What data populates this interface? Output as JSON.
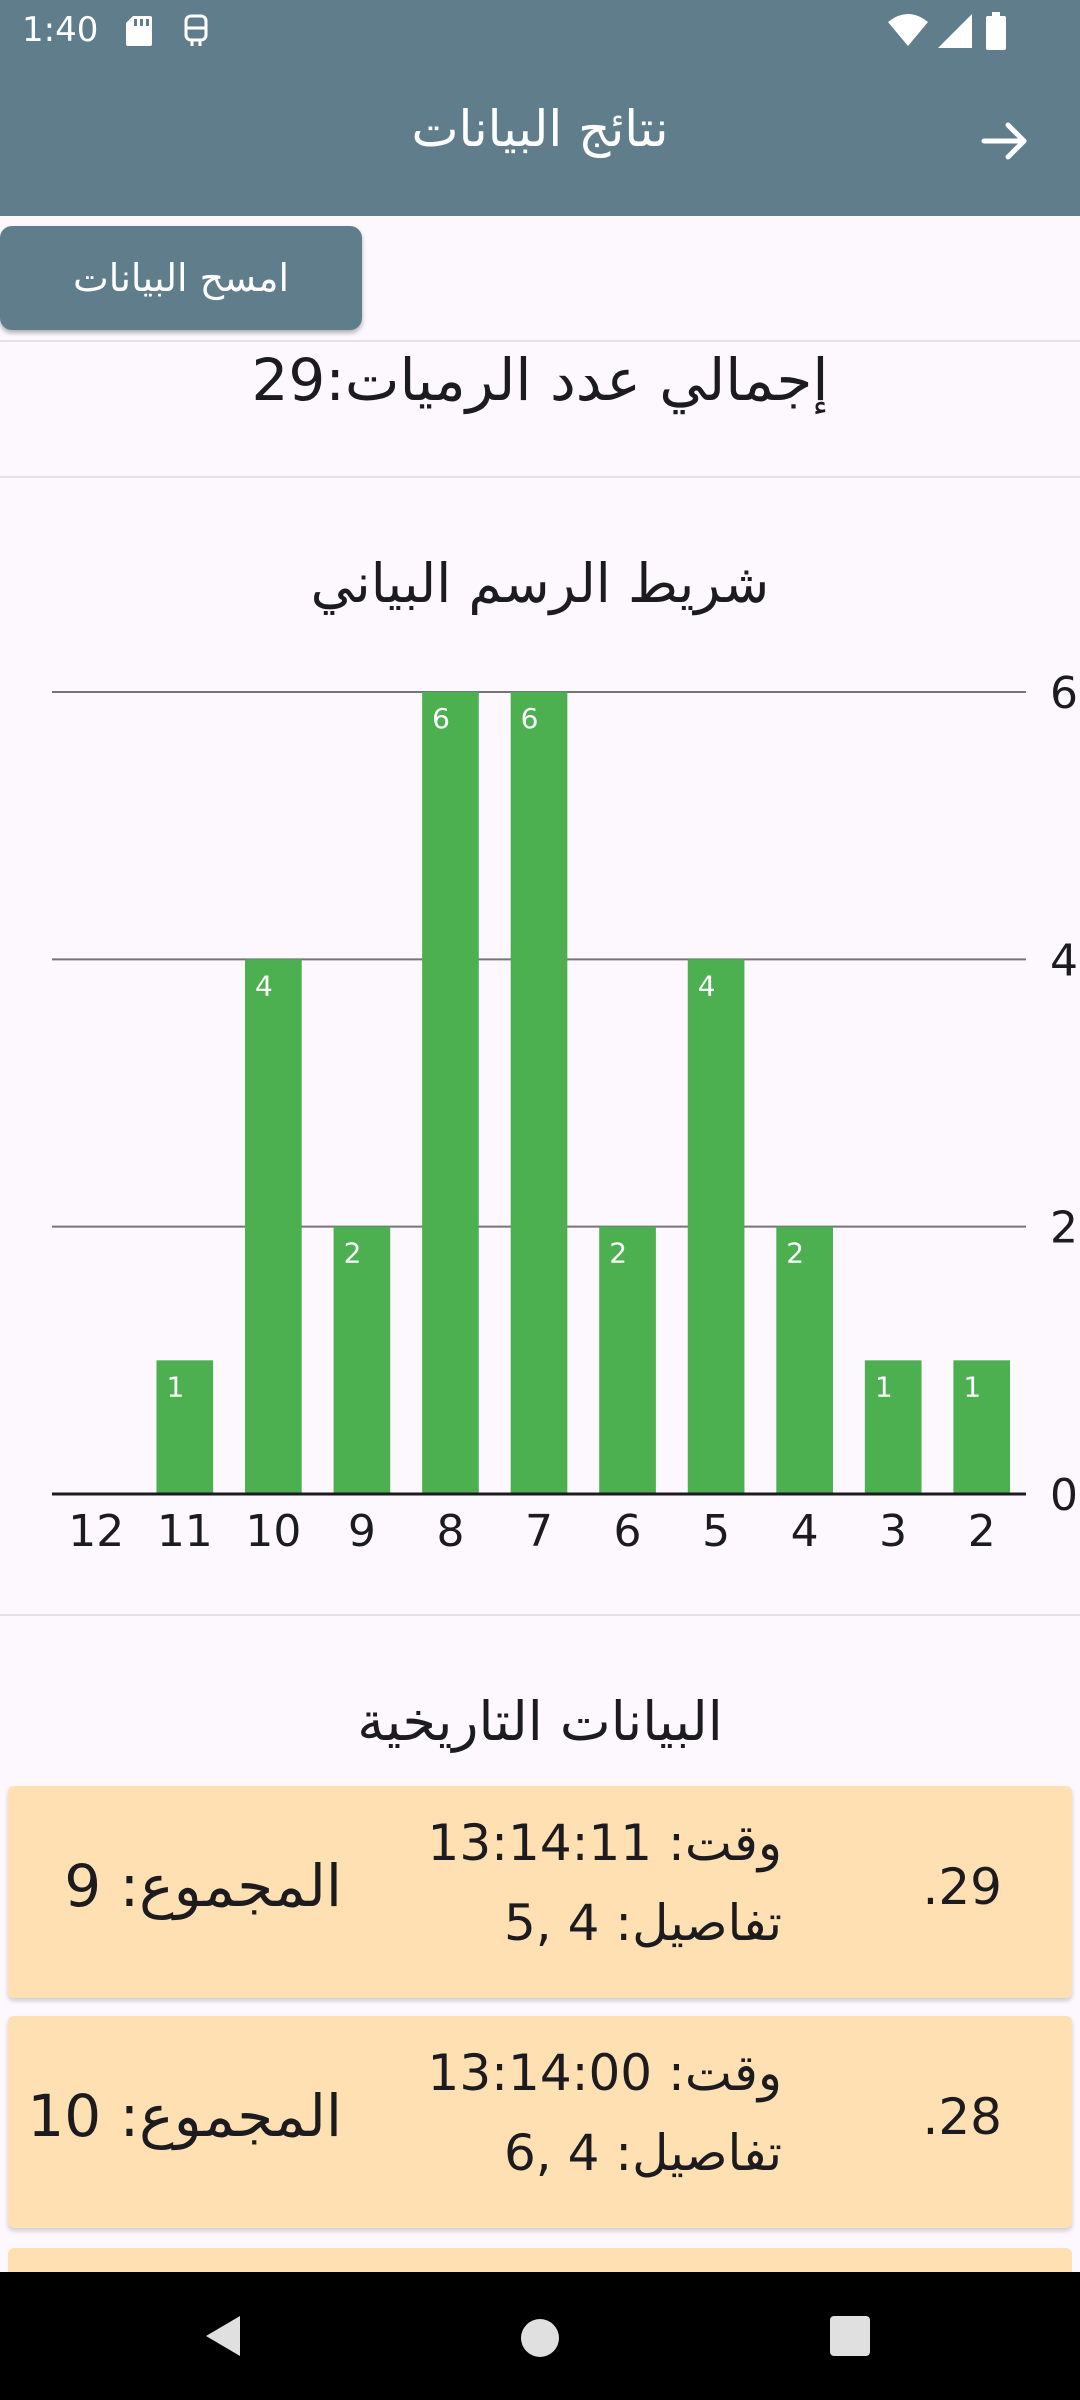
{
  "status_bar": {
    "time": "1:40",
    "icons": [
      "sd-card-icon",
      "cast-icon",
      "wifi-icon",
      "signal-icon",
      "battery-icon"
    ]
  },
  "app_bar": {
    "title": "نتائج البيانات",
    "back_icon": "arrow-right-icon",
    "color": "#607d8b"
  },
  "actions": {
    "clear_label": "امسح البيانات"
  },
  "summary": {
    "total_rolls_text": "إجمالي عدد الرميات:29"
  },
  "chart_data": {
    "type": "bar",
    "title": "شريط الرسم البياني",
    "categories": [
      "12",
      "11",
      "10",
      "9",
      "8",
      "7",
      "6",
      "5",
      "4",
      "3",
      "2"
    ],
    "values": [
      0,
      1,
      4,
      2,
      6,
      6,
      2,
      4,
      2,
      1,
      1
    ],
    "ylim": [
      0,
      6
    ],
    "yticks": [
      0,
      2,
      4,
      6
    ],
    "y_axis_side": "right",
    "grid": true,
    "bar_color": "#4caf50",
    "xlabel": "",
    "ylabel": ""
  },
  "history": {
    "title": "البيانات التاريخية",
    "entries": [
      {
        "index": ".29",
        "time": "وقت: 13:14:11",
        "details": "تفاصيل: 4 ,5",
        "sum": "المجموع: 9"
      },
      {
        "index": ".28",
        "time": "وقت: 13:14:00",
        "details": "تفاصيل: 4 ,6",
        "sum": "المجموع: 10"
      }
    ],
    "card_color": "#ffe0b2"
  },
  "nav_bar": {
    "icons": [
      "nav-back-icon",
      "nav-home-icon",
      "nav-recents-icon"
    ]
  }
}
